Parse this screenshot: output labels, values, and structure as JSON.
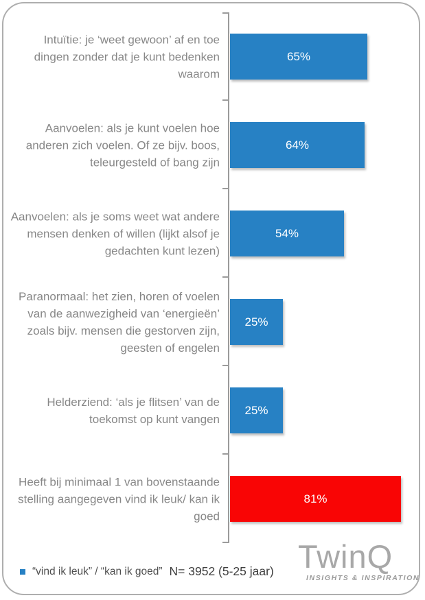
{
  "chart_data": {
    "type": "bar",
    "orientation": "horizontal",
    "categories": [
      "Intuïtie: je ‘weet gewoon’ af en toe dingen zonder dat je kunt bedenken waarom",
      "Aanvoelen: als je kunt voelen hoe anderen zich voelen. Of ze bijv. boos, teleurgesteld of bang zijn",
      "Aanvoelen: als je soms weet wat andere mensen denken of willen (lijkt alsof je gedachten kunt lezen)",
      "Paranormaal: het zien, horen of voelen van de aanwezigheid van ‘energieën’ zoals bijv. mensen die gestorven zijn, geesten of engelen",
      "Helderziend: ‘als je flitsen’ van de toekomst op kunt vangen",
      "Heeft bij minimaal 1 van bovenstaande stelling aangegeven vind ik leuk/ kan ik goed"
    ],
    "values": [
      65,
      64,
      54,
      25,
      25,
      81
    ],
    "value_labels": [
      "65%",
      "64%",
      "54%",
      "25%",
      "25%",
      "81%"
    ],
    "bar_colors": [
      "#2781c4",
      "#2781c4",
      "#2781c4",
      "#2781c4",
      "#2781c4",
      "#f90505"
    ],
    "xlim": [
      0,
      100
    ],
    "grid": false,
    "legend_position": "bottom-left"
  },
  "legend": {
    "label": "“vind ik leuk” / “kan ik goed”",
    "sample_note": "N= 3952 (5-25 jaar)",
    "marker_color": "#2781c4"
  },
  "branding": {
    "logo_text": "TwinQ",
    "tagline": "INSIGHTS & INSPIRATION"
  },
  "colors": {
    "bar_blue": "#2781c4",
    "bar_red": "#f90505",
    "axis_gray": "#9b9b9b",
    "label_gray": "#878787",
    "card_border": "#aeaeae"
  }
}
